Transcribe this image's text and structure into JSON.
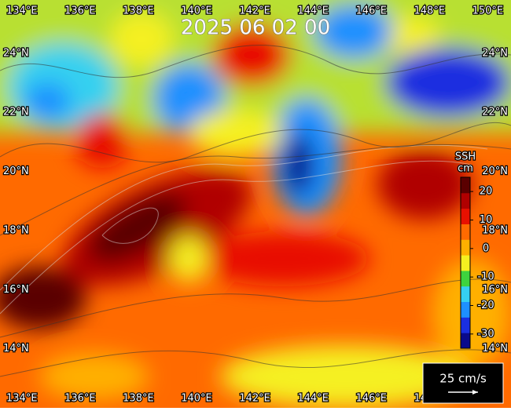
{
  "header": {
    "title": "2025 06 02 00"
  },
  "map": {
    "lonlim": [
      133.25,
      150.8
    ],
    "latlim": [
      12,
      25.8
    ],
    "lon_labels": [
      {
        "value": 134,
        "label": "134°E"
      },
      {
        "value": 136,
        "label": "136°E"
      },
      {
        "value": 138,
        "label": "138°E"
      },
      {
        "value": 140,
        "label": "140°E"
      },
      {
        "value": 142,
        "label": "142°E"
      },
      {
        "value": 144,
        "label": "144°E"
      },
      {
        "value": 146,
        "label": "146°E"
      },
      {
        "value": 148,
        "label": "148°E"
      },
      {
        "value": 150,
        "label": "150°E"
      }
    ],
    "lat_labels": [
      {
        "value": 24,
        "label": "24°N"
      },
      {
        "value": 22,
        "label": "22°N"
      },
      {
        "value": 20,
        "label": "20°N"
      },
      {
        "value": 18,
        "label": "18°N"
      },
      {
        "value": 16,
        "label": "16°N"
      },
      {
        "value": 14,
        "label": "14°N"
      }
    ]
  },
  "colorbar": {
    "title": "SSH",
    "unit": "cm",
    "lim": [
      -35,
      25
    ],
    "ticks": [
      20,
      10,
      0,
      -10,
      -20,
      -30
    ],
    "colors": [
      "#0a0a8c",
      "#1a2fe0",
      "#1e90ff",
      "#35d0f0",
      "#3ed33e",
      "#f5f020",
      "#ffb000",
      "#ff6a00",
      "#e81000",
      "#b00000",
      "#5a0000"
    ]
  },
  "legend": {
    "label": "25 cm/s"
  }
}
